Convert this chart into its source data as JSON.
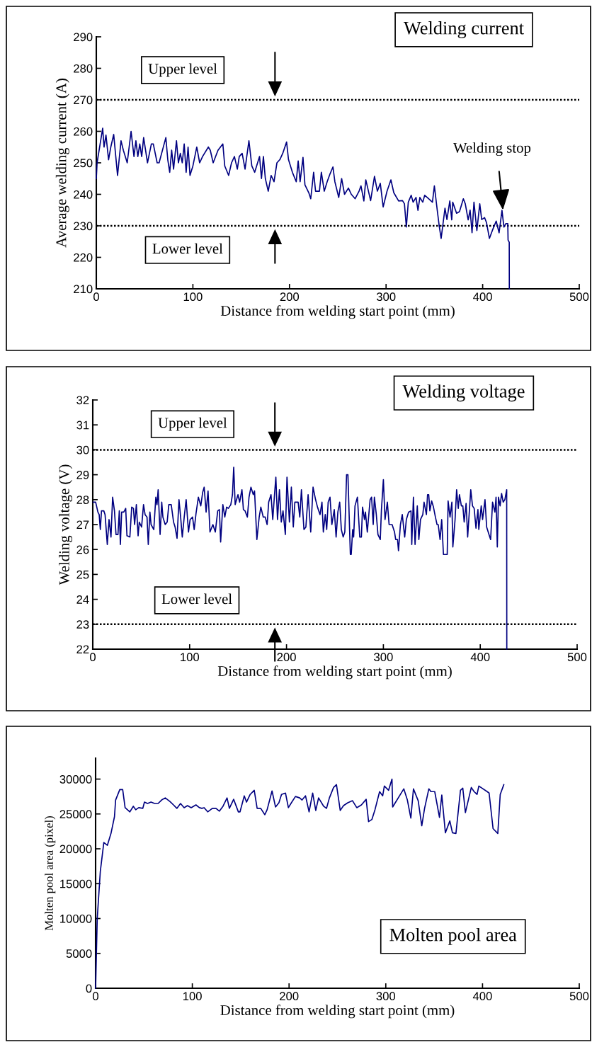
{
  "chart_data": [
    {
      "type": "line",
      "title": "Welding current",
      "xlabel": "Distance from welding start point (mm)",
      "ylabel": "Average welding current (A)",
      "xlim": [
        0,
        500
      ],
      "xticks": [
        0,
        100,
        200,
        300,
        400,
        500
      ],
      "ylim": [
        210,
        290
      ],
      "yticks": [
        210,
        220,
        230,
        240,
        250,
        260,
        270,
        280,
        290
      ],
      "grid": false,
      "legend": false,
      "marker": "none",
      "line_style": "solid",
      "ref_lines": [
        {
          "axis": "y",
          "value": 270,
          "label": "Upper level",
          "line_style": "dotted",
          "color": "#000000"
        },
        {
          "axis": "y",
          "value": 230,
          "label": "Lower level",
          "line_style": "dotted",
          "color": "#000000"
        }
      ],
      "annotations": [
        {
          "text": "Welding stop",
          "x": 421,
          "y": 235
        }
      ],
      "series": [
        {
          "color": "#000080",
          "x": [
            0,
            0.8,
            6.6,
            8,
            10,
            12.7,
            15,
            18,
            22,
            25.6,
            28,
            32,
            36,
            39,
            41,
            43,
            45,
            47,
            49,
            53,
            57,
            59,
            63,
            65,
            72,
            74,
            76,
            78,
            80,
            83,
            85,
            87,
            89,
            91,
            93,
            95,
            97,
            100,
            102,
            104,
            107,
            110,
            116,
            118,
            121,
            126,
            131,
            133,
            137,
            140,
            143,
            146,
            148,
            151,
            154,
            158,
            161,
            164,
            169,
            171,
            173,
            175,
            178,
            181,
            184,
            187,
            190,
            193,
            197,
            199,
            203,
            207,
            209,
            211,
            214,
            216,
            220,
            222,
            225,
            227,
            231,
            233,
            236,
            239,
            242,
            245,
            247,
            251,
            254,
            257,
            261,
            264,
            268,
            272,
            274,
            277,
            279,
            281,
            284,
            288,
            291,
            294,
            297,
            301,
            305,
            308,
            313,
            317,
            319,
            321,
            323,
            326,
            328,
            331,
            333,
            335,
            338,
            340,
            344,
            348,
            350,
            353,
            355,
            357,
            361,
            363,
            366,
            368,
            369,
            373,
            376,
            380,
            382,
            385,
            387,
            389,
            391,
            394,
            397,
            399,
            402,
            404,
            407,
            410,
            414,
            417,
            420,
            422,
            424,
            426,
            426.3,
            427.5,
            427.6
          ],
          "values": [
            245,
            250,
            261,
            255,
            258.8,
            251,
            255,
            259,
            246,
            257,
            254,
            250,
            260,
            252,
            257,
            252,
            256,
            252,
            258,
            250,
            256,
            256,
            250,
            250,
            258,
            251,
            247,
            254,
            248,
            257,
            250,
            253,
            250,
            256,
            247,
            255,
            246,
            249,
            252,
            255,
            250,
            252,
            255,
            254,
            250,
            254,
            256,
            249,
            246,
            250,
            252,
            248,
            252,
            253,
            248,
            257,
            249,
            247,
            252,
            245,
            252,
            245,
            241,
            246,
            244,
            250,
            251,
            253,
            256.6,
            251,
            247,
            244,
            250.6,
            244,
            251.7,
            243,
            240.5,
            238.6,
            247,
            241,
            241,
            247,
            241,
            244,
            246.5,
            248.7,
            244,
            239,
            245,
            240,
            242,
            240,
            238.6,
            241,
            242.7,
            237.9,
            244.6,
            242,
            238,
            245.7,
            241,
            243.5,
            236,
            241,
            244.6,
            240.5,
            237.9,
            238,
            237,
            229.6,
            237.5,
            239.7,
            237.5,
            239,
            234.9,
            239,
            237.5,
            239.7,
            238.6,
            237.5,
            242.7,
            234.9,
            230,
            226,
            235.6,
            232,
            237.9,
            231.9,
            237.5,
            234,
            234.5,
            238.6,
            237,
            231.9,
            235,
            227.8,
            237.5,
            228.5,
            237,
            232,
            232.6,
            231,
            226,
            228.5,
            231.5,
            227.8,
            234.9,
            229.6,
            230.7,
            230.7,
            225.5,
            224.8,
            210
          ]
        }
      ]
    },
    {
      "type": "line",
      "title": "Welding voltage",
      "xlabel": "Distance from welding start point (mm)",
      "ylabel": "Welding voltage (V)",
      "xlim": [
        0,
        500
      ],
      "xticks": [
        0,
        100,
        200,
        300,
        400,
        500
      ],
      "ylim": [
        22,
        32
      ],
      "yticks": [
        22,
        23,
        24,
        25,
        26,
        27,
        28,
        29,
        30,
        31,
        32
      ],
      "grid": false,
      "legend": false,
      "marker": "none",
      "line_style": "solid",
      "ref_lines": [
        {
          "axis": "y",
          "value": 30,
          "label": "Upper level",
          "line_style": "dotted",
          "color": "#000000"
        },
        {
          "axis": "y",
          "value": 23,
          "label": "Lower level",
          "line_style": "dotted",
          "color": "#000000"
        }
      ],
      "series": [
        {
          "color": "#000080",
          "x": [
            0.5,
            3,
            5.3,
            6.6,
            7.8,
            9,
            11.4,
            12.7,
            15,
            16.8,
            18.8,
            20.5,
            22.4,
            24,
            26,
            27.4,
            28.5,
            29.8,
            32,
            34,
            35.3,
            38.3,
            40.2,
            42,
            43.2,
            45,
            46.8,
            48,
            50.4,
            52.4,
            54,
            56,
            57.3,
            59,
            60.2,
            63,
            65.1,
            66.3,
            67.5,
            69.5,
            71.2,
            72.4,
            74.8,
            76.8,
            78.5,
            81,
            83.4,
            85,
            87,
            89,
            90.7,
            92.4,
            94.4,
            96.4,
            98.8,
            100.5,
            103,
            104.7,
            106.6,
            109,
            111.5,
            113.5,
            115,
            117,
            119,
            121,
            124,
            126.5,
            129,
            130.7,
            132,
            134.3,
            136.3,
            138.2,
            140,
            142.5,
            144.2,
            145.5,
            147,
            149.9,
            151.6,
            154,
            155.5,
            157.2,
            159.6,
            161.3,
            163.3,
            165.7,
            167,
            169.4,
            171.8,
            173.5,
            176,
            178,
            180,
            181.6,
            184,
            185.8,
            187.8,
            189,
            190.7,
            192.7,
            194.6,
            196.4,
            198.8,
            200.5,
            203,
            205,
            207,
            208.6,
            212,
            213.7,
            215.4,
            218,
            220,
            222.3,
            225,
            227.4,
            230,
            232,
            234.6,
            236.6,
            238,
            240,
            241.5,
            243,
            244.9,
            246.8,
            249.3,
            251.2,
            253,
            254.9,
            256.6,
            258.5,
            260.2,
            262,
            263.4,
            265.9,
            266.8,
            268.3,
            269.3,
            270.7,
            273.2,
            275.6,
            277.3,
            278.5,
            280.5,
            281.5,
            283.4,
            286.3,
            287.8,
            289.5,
            290.7,
            292.7,
            294.4,
            296.8,
            298,
            300,
            301.7,
            304.1,
            305.9,
            309,
            311.5,
            312.7,
            314.6,
            315.6,
            317.6,
            319.5,
            322,
            323.7,
            326,
            328.5,
            329.3,
            331,
            332.7,
            335,
            336.6,
            338.3,
            340.7,
            342,
            344.4,
            345.6,
            346.8,
            348,
            349.8,
            351.7,
            353.7,
            355.4,
            356.6,
            358.5,
            360.2,
            362,
            365.9,
            366.8,
            368.8,
            370.7,
            371.7,
            374,
            375.6,
            377.3,
            378.5,
            380.5,
            382,
            383.4,
            385.4,
            387,
            390.2,
            392,
            393.7,
            395.6,
            397.6,
            398.5,
            401,
            402.4,
            404.9,
            406.6,
            409,
            410.7,
            412.7,
            415.1,
            416.3,
            417.6,
            418.8,
            420.5,
            422,
            423.7,
            425.4,
            427.3,
            427.4
          ],
          "values": [
            27.9,
            27.9,
            27.5,
            27.4,
            26.8,
            27.55,
            27.55,
            27.4,
            26.2,
            27.2,
            26.5,
            28.1,
            27.55,
            26.6,
            26.6,
            27.55,
            26.2,
            27.5,
            27.5,
            27.65,
            26.55,
            26.5,
            27.7,
            27.65,
            27.0,
            27.8,
            26.55,
            27.1,
            26.9,
            27.8,
            27.4,
            27.3,
            26.2,
            27.5,
            27.0,
            26.8,
            28.1,
            27.8,
            28.4,
            26.6,
            27.9,
            27.3,
            27.0,
            27.1,
            27.8,
            27.8,
            27.1,
            26.9,
            26.45,
            28.0,
            27.3,
            26.5,
            27.3,
            28.0,
            26.7,
            27.2,
            27.3,
            26.8,
            27.45,
            28.1,
            27.75,
            28.3,
            28.5,
            27.5,
            28.35,
            26.7,
            27.0,
            26.7,
            27.55,
            27.6,
            26.3,
            27.8,
            27.3,
            27.7,
            27.65,
            27.8,
            28.2,
            29.3,
            27.8,
            28.2,
            27.9,
            28.4,
            27.6,
            27.55,
            27.3,
            28.1,
            28.5,
            28.2,
            28.35,
            26.4,
            27.3,
            27.7,
            27.3,
            27.3,
            27.0,
            27.9,
            28.2,
            27.2,
            28.3,
            28.9,
            27.2,
            28.4,
            27.1,
            27.55,
            26.6,
            28.9,
            27.1,
            28.5,
            26.9,
            27.9,
            27.9,
            27.3,
            28.4,
            26.8,
            26.9,
            28.2,
            26.7,
            28.5,
            28.0,
            27.7,
            27.4,
            27.9,
            26.7,
            27.4,
            26.8,
            27.9,
            28.1,
            27.0,
            27.6,
            26.5,
            27.5,
            27.9,
            26.8,
            26.5,
            26.7,
            29.0,
            29.0,
            25.8,
            25.8,
            26.8,
            26.5,
            27.75,
            28.1,
            26.5,
            26.5,
            27.7,
            27.2,
            27.5,
            26.7,
            28.0,
            28.1,
            27.0,
            28.1,
            27.4,
            26.6,
            26.4,
            27.6,
            28.8,
            27.2,
            27.9,
            27.0,
            27.0,
            26.7,
            26.4,
            26.4,
            25.95,
            27.0,
            27.4,
            26.5,
            27.2,
            27.5,
            27.55,
            26.2,
            28.1,
            26.2,
            27.75,
            26.4,
            27.2,
            27.4,
            27.9,
            27.4,
            28.2,
            28.2,
            27.55,
            27.95,
            27.7,
            27.3,
            27.0,
            27.0,
            26.4,
            27.2,
            25.8,
            25.8,
            27.95,
            27.3,
            27.9,
            26.1,
            27.2,
            28.4,
            27.65,
            28.2,
            27.75,
            27.75,
            27.1,
            27.85,
            26.5,
            28.4,
            27.75,
            27.65,
            26.85,
            27.6,
            26.8,
            27.75,
            27.2,
            28.0,
            26.9,
            26.6,
            26.4,
            27.9,
            27.5,
            28.1,
            26.1,
            28.1,
            27.75,
            28.25,
            27.9,
            28.0,
            28.4,
            22
          ]
        }
      ]
    },
    {
      "type": "line",
      "title": "Molten pool area",
      "xlabel": "Distance from welding start point (mm)",
      "ylabel": "Molten pool area (pixel)",
      "xlim": [
        0,
        500
      ],
      "xticks": [
        0,
        100,
        200,
        300,
        400,
        500
      ],
      "ylim": [
        0,
        33000
      ],
      "yticks": [
        0,
        5000,
        10000,
        15000,
        20000,
        25000,
        30000
      ],
      "grid": false,
      "legend": false,
      "marker": "none",
      "line_style": "solid",
      "series": [
        {
          "color": "#000080",
          "x": [
            0,
            1.7,
            4.9,
            8.5,
            12.2,
            15.9,
            19.5,
            20.7,
            25,
            28,
            30.5,
            35.4,
            39,
            41.5,
            44.6,
            48.8,
            50.5,
            53.7,
            57.3,
            61,
            64.6,
            68.3,
            72,
            76.8,
            80.5,
            84,
            87.8,
            91.5,
            95,
            98.8,
            103.7,
            107.3,
            109.8,
            112.2,
            115.9,
            120.7,
            124.4,
            128,
            131.7,
            135.9,
            138.3,
            142.7,
            147.6,
            149.3,
            153.7,
            156,
            159.8,
            164,
            167,
            170.7,
            174.9,
            177.3,
            182.4,
            186,
            189.5,
            192.2,
            196.3,
            199.3,
            202.4,
            206.6,
            211,
            213.4,
            217,
            220.7,
            224.4,
            227.6,
            230.5,
            235.8,
            238.7,
            241.7,
            246,
            249,
            252.9,
            256.3,
            260.7,
            265.6,
            270,
            274.8,
            279.7,
            282.2,
            285.6,
            288.8,
            293.6,
            296.8,
            298.5,
            302.9,
            306.4,
            307.1,
            318.6,
            322.3,
            325.9,
            328.6,
            333.5,
            337.2,
            340.1,
            344.5,
            346.7,
            350.6,
            355.5,
            357.9,
            361.6,
            366.2,
            368.9,
            372.5,
            377.2,
            379.6,
            382.3,
            388.4,
            391.3,
            394.3,
            396.2,
            404.8,
            406.8,
            410.9,
            415.8,
            418.3,
            422
          ],
          "values": [
            0,
            10000,
            16800,
            20900,
            20500,
            22200,
            24600,
            27000,
            28500,
            28500,
            25900,
            25300,
            26100,
            25600,
            25900,
            25800,
            26700,
            26500,
            26700,
            26500,
            26500,
            27000,
            27300,
            26800,
            26300,
            25800,
            26500,
            25900,
            26200,
            25900,
            26300,
            25900,
            25800,
            25900,
            25300,
            25800,
            25800,
            25400,
            26100,
            27300,
            25800,
            27100,
            25300,
            25300,
            27600,
            26700,
            27800,
            28400,
            25800,
            25800,
            24900,
            25600,
            28300,
            26000,
            26600,
            27800,
            28000,
            25900,
            26600,
            27500,
            27300,
            27000,
            27600,
            25300,
            28000,
            25500,
            27300,
            26100,
            25800,
            27300,
            28800,
            29200,
            25500,
            26200,
            26600,
            26900,
            25900,
            26300,
            27100,
            23900,
            24200,
            25600,
            28200,
            27600,
            29000,
            28400,
            30000,
            26000,
            28600,
            27000,
            24400,
            28600,
            26900,
            23300,
            25800,
            28600,
            28200,
            28200,
            24500,
            27700,
            22300,
            24000,
            22300,
            22200,
            28400,
            28700,
            25200,
            28800,
            28200,
            27800,
            29000,
            28200,
            28000,
            22900,
            22200,
            27800,
            29200
          ]
        }
      ]
    }
  ]
}
